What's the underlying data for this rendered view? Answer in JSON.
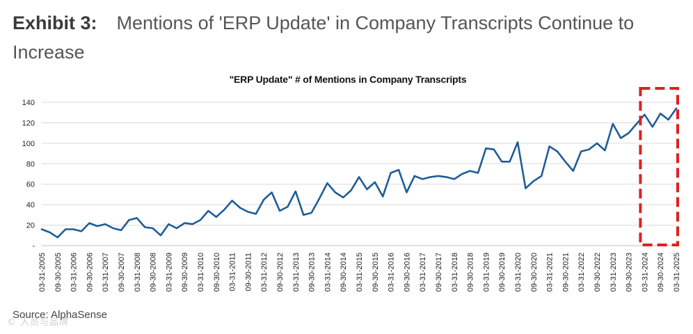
{
  "heading": {
    "exhibit_label": "Exhibit 3:",
    "text": "Mentions of 'ERP Update' in Company Transcripts Continue to Increase"
  },
  "source": "Source: AlphaSense",
  "watermark": "© 人员与品牌",
  "colors": {
    "line": "#1f5c99",
    "highlight": "#e02020",
    "grid": "#d9d9d9"
  },
  "chart_data": {
    "type": "line",
    "title": "\"ERP Update\" # of Mentions in Company Transcripts",
    "xlabel": "",
    "ylabel": "",
    "ylim": [
      0,
      140
    ],
    "yticks": [
      0,
      20,
      40,
      60,
      80,
      100,
      120,
      140
    ],
    "ytick_labels": [
      "-",
      "20",
      "40",
      "60",
      "80",
      "100",
      "120",
      "140"
    ],
    "grid": true,
    "x_tick_labels": [
      "03-31-2005",
      "09-30-2005",
      "03-31-2006",
      "09-30-2006",
      "03-31-2007",
      "09-30-2007",
      "03-31-2008",
      "09-30-2008",
      "03-31-2009",
      "09-30-2009",
      "03-31-2010",
      "09-30-2010",
      "03-31-2011",
      "09-30-2011",
      "03-31-2012",
      "09-30-2012",
      "03-31-2013",
      "09-30-2013",
      "03-31-2014",
      "09-30-2014",
      "03-31-2015",
      "09-30-2015",
      "03-31-2016",
      "09-30-2016",
      "03-31-2017",
      "09-30-2017",
      "03-31-2018",
      "09-30-2018",
      "03-31-2019",
      "09-30-2019",
      "03-31-2020",
      "09-30-2020",
      "03-31-2021",
      "09-30-2021",
      "03-31-2022",
      "09-30-2022",
      "03-31-2023",
      "09-30-2023",
      "03-31-2024",
      "09-30-2024",
      "03-31-2025"
    ],
    "series": [
      {
        "name": "# of Mentions",
        "values": [
          16,
          13,
          8,
          16,
          16,
          14,
          22,
          19,
          21,
          17,
          15,
          25,
          27,
          18,
          17,
          10,
          21,
          17,
          22,
          21,
          25,
          34,
          28,
          35,
          44,
          37,
          33,
          31,
          45,
          52,
          34,
          38,
          53,
          30,
          32,
          46,
          61,
          52,
          47,
          54,
          67,
          55,
          62,
          48,
          71,
          74,
          52,
          68,
          65,
          67,
          68,
          67,
          65,
          70,
          73,
          71,
          95,
          94,
          82,
          82,
          101,
          56,
          63,
          68,
          97,
          92,
          82,
          73,
          92,
          94,
          100,
          93,
          119,
          105,
          110,
          119,
          128,
          116,
          129,
          123,
          134
        ]
      }
    ],
    "highlight": {
      "label": "",
      "range": [
        "03-31-2024",
        "03-31-2025"
      ]
    }
  }
}
